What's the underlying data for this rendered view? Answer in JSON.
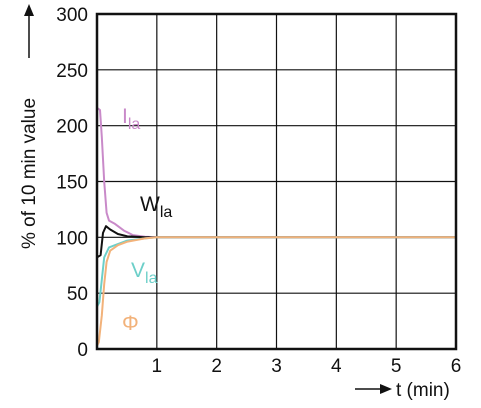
{
  "chart_data": {
    "type": "line",
    "title": "",
    "xlabel": "t (min)",
    "ylabel": "% of 10 min value",
    "xlim": [
      0,
      6
    ],
    "ylim": [
      0,
      300
    ],
    "x_ticks": [
      "1",
      "2",
      "3",
      "4",
      "5",
      "6"
    ],
    "y_ticks": [
      "0",
      "50",
      "100",
      "150",
      "200",
      "250",
      "300"
    ],
    "grid": true,
    "series": [
      {
        "name_main": "I",
        "name_sub": "la",
        "color": "#c98ac9",
        "points": [
          [
            0,
            216
          ],
          [
            0.05,
            214
          ],
          [
            0.08,
            190
          ],
          [
            0.12,
            150
          ],
          [
            0.16,
            122
          ],
          [
            0.2,
            115
          ],
          [
            0.3,
            112
          ],
          [
            0.45,
            106
          ],
          [
            0.6,
            102
          ],
          [
            0.8,
            100.5
          ],
          [
            1.0,
            100
          ],
          [
            6,
            100
          ]
        ]
      },
      {
        "name_main": "W",
        "name_sub": "la",
        "color": "#111111",
        "points": [
          [
            0,
            82
          ],
          [
            0.06,
            84
          ],
          [
            0.1,
            104
          ],
          [
            0.15,
            110
          ],
          [
            0.22,
            107
          ],
          [
            0.35,
            103
          ],
          [
            0.5,
            101
          ],
          [
            0.8,
            100
          ],
          [
            6,
            100
          ]
        ]
      },
      {
        "name_main": "V",
        "name_sub": "la",
        "color": "#6ccfc9",
        "points": [
          [
            0,
            38
          ],
          [
            0.04,
            42
          ],
          [
            0.08,
            62
          ],
          [
            0.12,
            82
          ],
          [
            0.2,
            91
          ],
          [
            0.35,
            94
          ],
          [
            0.5,
            97
          ],
          [
            0.8,
            99
          ],
          [
            1.0,
            100
          ],
          [
            6,
            100
          ]
        ]
      },
      {
        "name_main": "Φ",
        "name_sub": "",
        "color": "#f2b27a",
        "points": [
          [
            0,
            3
          ],
          [
            0.03,
            6
          ],
          [
            0.08,
            30
          ],
          [
            0.12,
            58
          ],
          [
            0.16,
            78
          ],
          [
            0.22,
            88
          ],
          [
            0.35,
            93
          ],
          [
            0.5,
            96
          ],
          [
            0.8,
            99
          ],
          [
            1.0,
            100
          ],
          [
            6,
            100
          ]
        ]
      }
    ]
  }
}
